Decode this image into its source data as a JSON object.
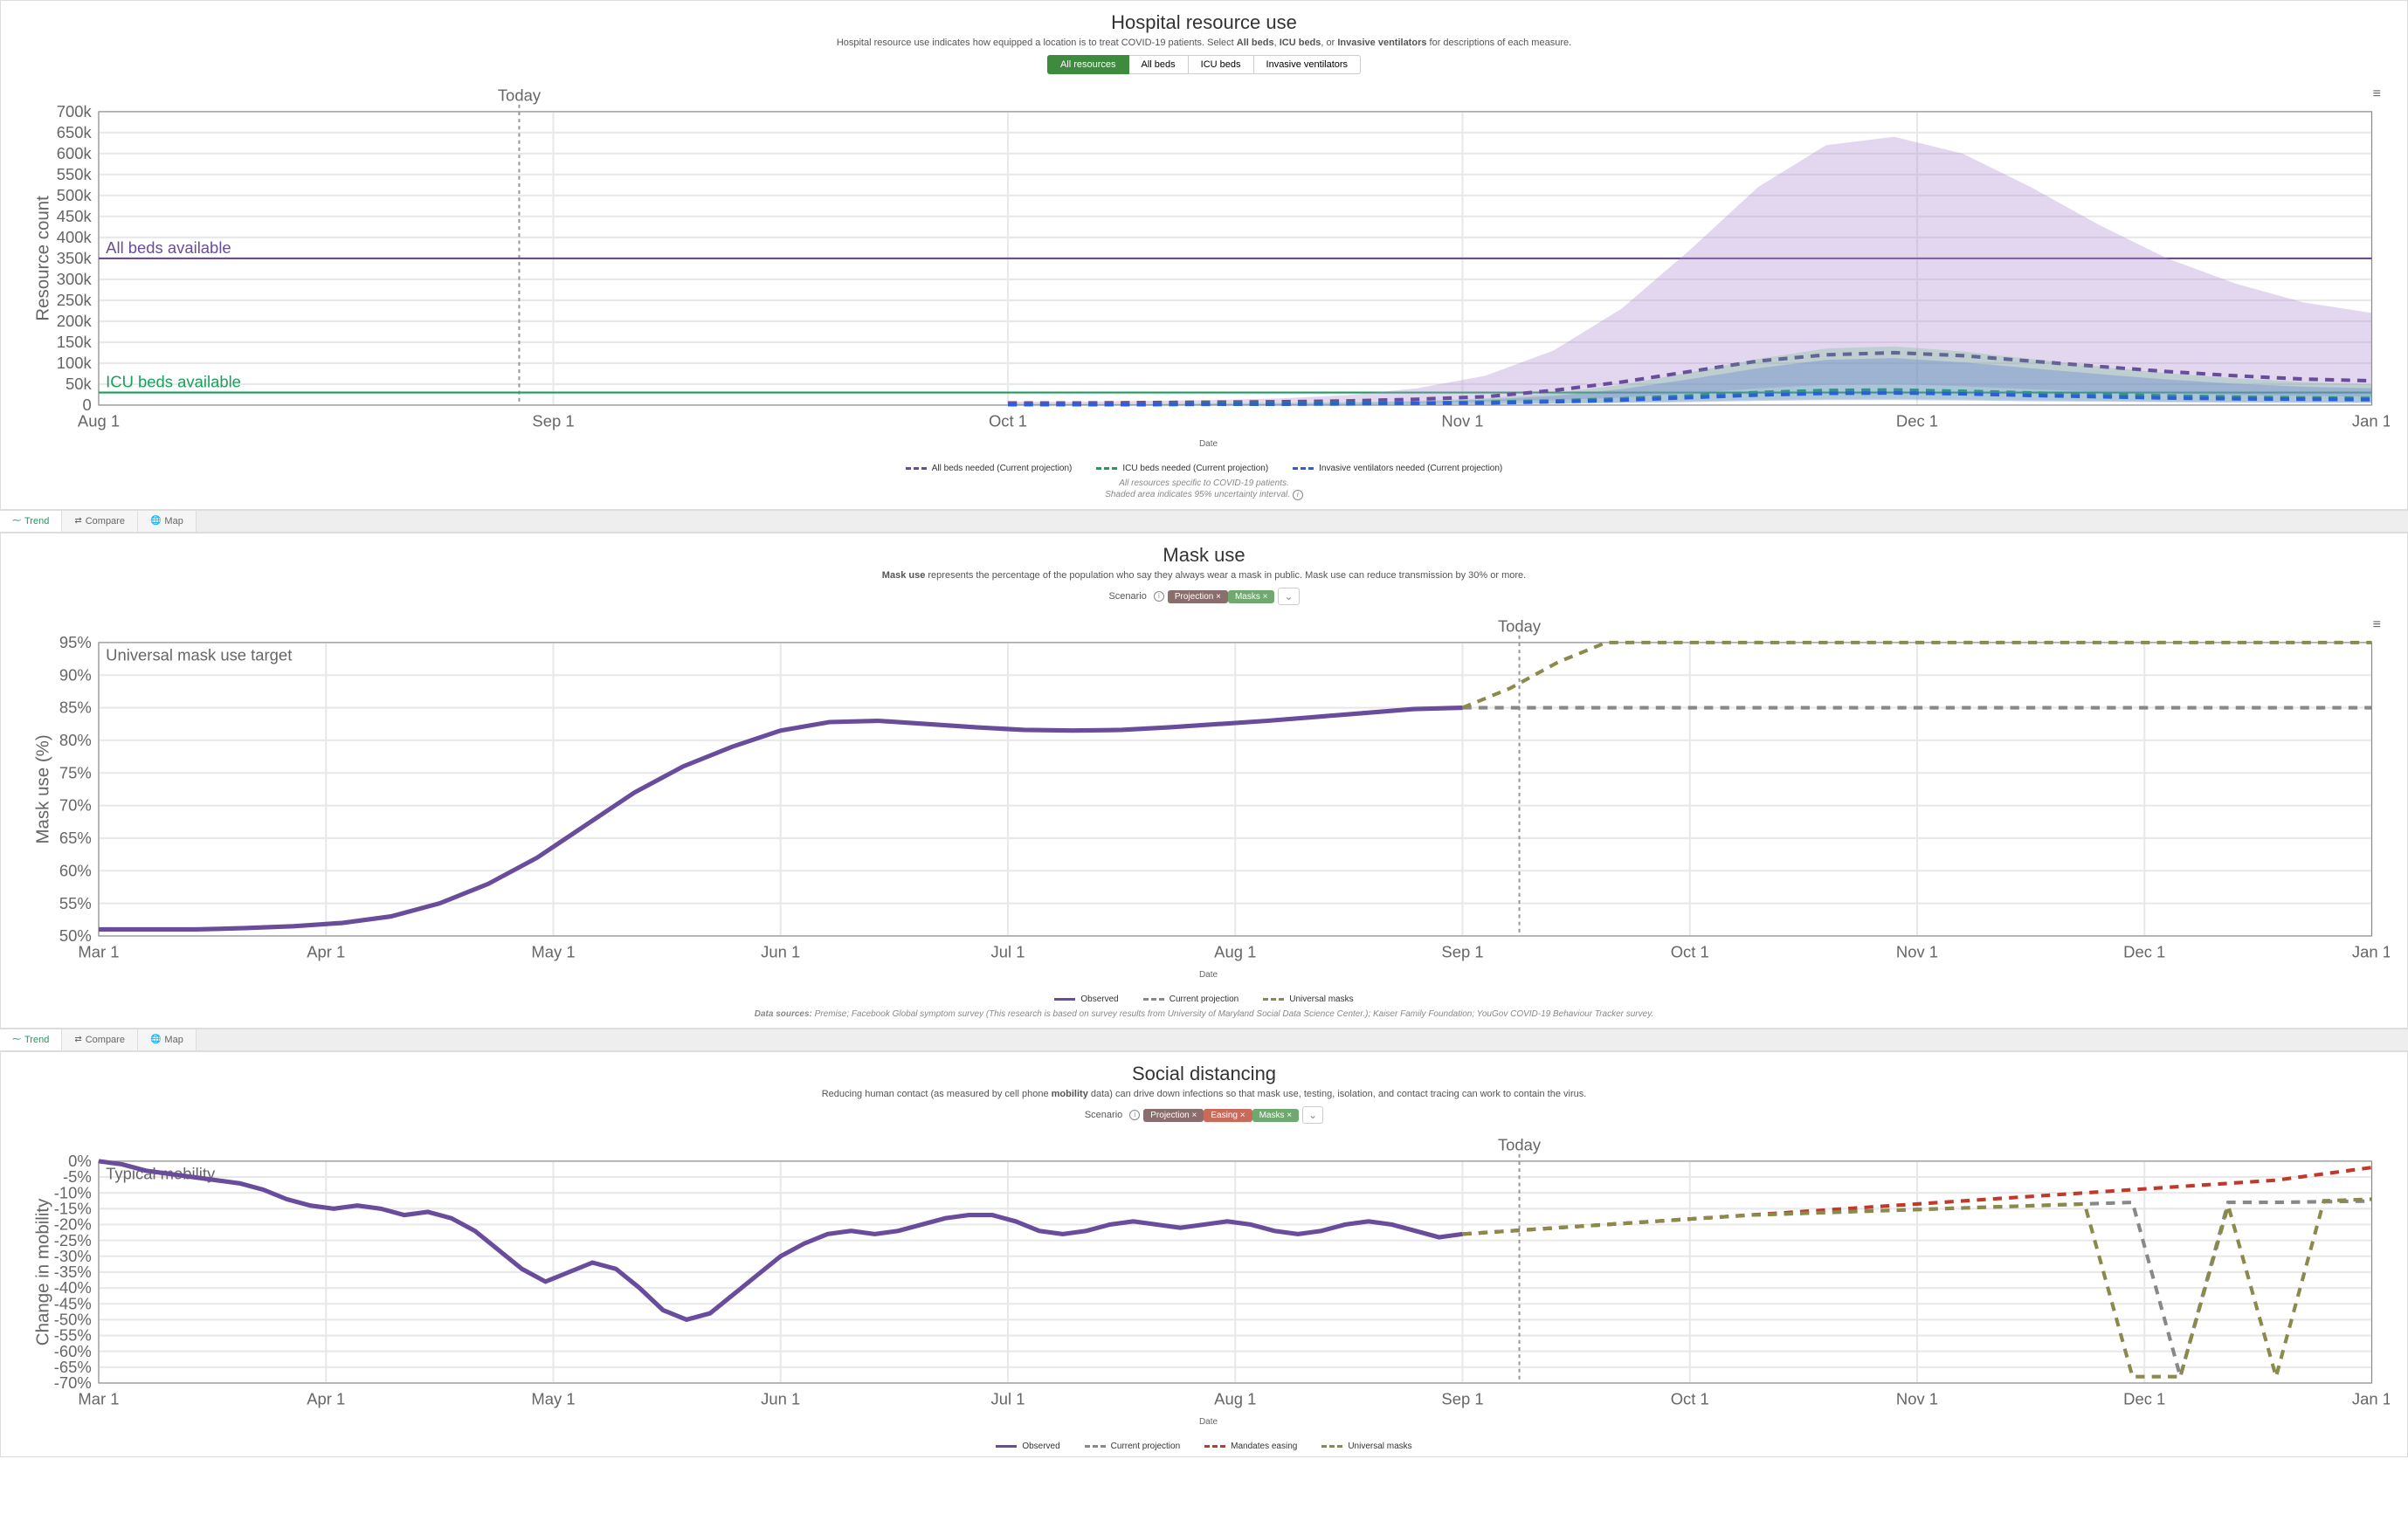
{
  "colors": {
    "purple": "#6a4c9c",
    "green": "#1a9e5c",
    "blue": "#2b5fd9",
    "red": "#c0392b",
    "olive": "#8a8a4a",
    "grid": "#e8e8e8",
    "axis": "#888",
    "today": "#999",
    "text": "#666",
    "area_purple": "rgba(176,140,210,0.35)",
    "area_blue": "rgba(100,130,210,0.35)",
    "area_green": "rgba(80,180,120,0.25)"
  },
  "today_label": "Today",
  "hospital": {
    "title": "Hospital resource use",
    "subtitle_pre": "Hospital resource use indicates how equipped a location is to treat COVID-19 patients. Select ",
    "subtitle_b1": "All beds",
    "subtitle_m1": ", ",
    "subtitle_b2": "ICU beds",
    "subtitle_m2": ", or ",
    "subtitle_b3": "Invasive ventilators",
    "subtitle_post": " for descriptions of each measure.",
    "tabs": [
      "All resources",
      "All beds",
      "ICU beds",
      "Invasive ventilators"
    ],
    "x_label": "Date",
    "y_label": "Resource count",
    "x_ticks": [
      "Aug 1",
      "Sep 1",
      "Oct 1",
      "Nov 1",
      "Dec 1",
      "Jan 1"
    ],
    "x_tick_pos": [
      0,
      0.2,
      0.4,
      0.6,
      0.8,
      1.0
    ],
    "y_max": 700,
    "y_step": 50,
    "today_x": 0.185,
    "ref_lines": [
      {
        "label": "All beds available",
        "y": 350,
        "color": "#6a4c9c"
      },
      {
        "label": "ICU beds available",
        "y": 30,
        "color": "#1a9e5c"
      }
    ],
    "series": {
      "allbeds": {
        "color": "#6a4c9c",
        "area": "rgba(176,140,210,0.35)",
        "mean": [
          5,
          5,
          6,
          7,
          8,
          10,
          14,
          20,
          35,
          55,
          80,
          105,
          120,
          125,
          118,
          105,
          92,
          80,
          70,
          62,
          58
        ],
        "upper": [
          8,
          8,
          10,
          12,
          16,
          24,
          40,
          70,
          130,
          230,
          370,
          520,
          620,
          640,
          600,
          520,
          430,
          350,
          290,
          245,
          220
        ],
        "lower": [
          2,
          2,
          3,
          3,
          4,
          5,
          6,
          8,
          12,
          18,
          28,
          40,
          48,
          50,
          45,
          38,
          32,
          28,
          24,
          22,
          20
        ]
      },
      "icu": {
        "color": "#1a9e5c",
        "area": "rgba(80,180,120,0.25)",
        "mean": [
          2,
          2,
          2,
          3,
          3,
          4,
          5,
          7,
          10,
          15,
          22,
          30,
          35,
          36,
          33,
          29,
          25,
          22,
          19,
          17,
          16
        ],
        "upper": [
          3,
          3,
          3,
          4,
          5,
          7,
          10,
          16,
          28,
          48,
          78,
          110,
          135,
          140,
          128,
          110,
          92,
          76,
          64,
          55,
          50
        ],
        "lower": [
          1,
          1,
          1,
          1,
          1,
          2,
          2,
          3,
          4,
          6,
          9,
          12,
          14,
          15,
          13,
          11,
          10,
          8,
          7,
          7,
          6
        ]
      },
      "vent": {
        "color": "#2b5fd9",
        "area": "rgba(100,130,210,0.35)",
        "mean": [
          1,
          1,
          1,
          2,
          2,
          3,
          4,
          5,
          8,
          12,
          18,
          24,
          28,
          29,
          27,
          23,
          20,
          17,
          15,
          14,
          13
        ],
        "upper": [
          2,
          2,
          2,
          3,
          4,
          5,
          8,
          13,
          22,
          38,
          62,
          88,
          108,
          112,
          102,
          88,
          74,
          61,
          51,
          44,
          40
        ],
        "lower": [
          0.5,
          0.5,
          0.5,
          1,
          1,
          1,
          2,
          2,
          3,
          5,
          7,
          10,
          12,
          12,
          11,
          9,
          8,
          7,
          6,
          5,
          5
        ]
      }
    },
    "series_xstart": 0.4,
    "legend": [
      {
        "label": "All beds needed (Current projection)",
        "color": "#6a4c9c",
        "dash": true
      },
      {
        "label": "ICU beds needed (Current projection)",
        "color": "#1a9e5c",
        "dash": true
      },
      {
        "label": "Invasive ventilators needed (Current projection)",
        "color": "#2b5fd9",
        "dash": true
      }
    ],
    "note1": "All resources specific to COVID-19 patients.",
    "note2": "Shaded area indicates 95% uncertainty interval."
  },
  "viewtabs": [
    {
      "icon": "trend-icon",
      "label": "Trend",
      "active": true
    },
    {
      "icon": "compare-icon",
      "label": "Compare"
    },
    {
      "icon": "map-icon",
      "label": "Map"
    }
  ],
  "mask": {
    "title": "Mask use",
    "sub_b": "Mask use",
    "sub_rest": " represents the percentage of the population who say they always wear a mask in public. Mask use can reduce transmission by 30% or more.",
    "scenario_label": "Scenario",
    "pills": [
      {
        "label": "Projection",
        "color": "#8a6d6d"
      },
      {
        "label": "Masks",
        "color": "#6fa96f"
      }
    ],
    "x_label": "Date",
    "y_label": "Mask use (%)",
    "x_ticks": [
      "Mar 1",
      "Apr 1",
      "May 1",
      "Jun 1",
      "Jul 1",
      "Aug 1",
      "Sep 1",
      "Oct 1",
      "Nov 1",
      "Dec 1",
      "Jan 1"
    ],
    "y_min": 50,
    "y_max": 95,
    "y_step": 5,
    "target_label": "Universal mask use target",
    "target_y": 95,
    "today_x": 0.625,
    "observed_end": 0.6,
    "observed": [
      51,
      51,
      51,
      51.2,
      51.5,
      52,
      53,
      55,
      58,
      62,
      67,
      72,
      76,
      79,
      81.5,
      82.8,
      83,
      82.5,
      82,
      81.6,
      81.5,
      81.6,
      82,
      82.5,
      83,
      83.6,
      84.2,
      84.8,
      85
    ],
    "proj": [
      85,
      85,
      85,
      85,
      85,
      85,
      85,
      85,
      85,
      85,
      85,
      85,
      85,
      85,
      85,
      85,
      85,
      85,
      85,
      85
    ],
    "masks": [
      85,
      88,
      92,
      95,
      95,
      95,
      95,
      95,
      95,
      95,
      95,
      95,
      95,
      95,
      95,
      95,
      95,
      95,
      95,
      95
    ],
    "legend": [
      {
        "label": "Observed",
        "color": "#6a4c9c",
        "dash": false
      },
      {
        "label": "Current projection",
        "color": "#888888",
        "dash": true
      },
      {
        "label": "Universal masks",
        "color": "#8a8a4a",
        "dash": true
      }
    ],
    "sources_b": "Data sources:",
    "sources": " Premise; Facebook Global symptom survey (This research is based on survey results from University of Maryland Social Data Science Center.); Kaiser Family Foundation; YouGov COVID-19 Behaviour Tracker survey."
  },
  "social": {
    "title": "Social distancing",
    "sub_pre": "Reducing human contact (as measured by cell phone ",
    "sub_b": "mobility",
    "sub_post": " data) can drive down infections so that mask use, testing, isolation, and contact tracing can work to contain the virus.",
    "scenario_label": "Scenario",
    "pills": [
      {
        "label": "Projection",
        "color": "#8a6d6d"
      },
      {
        "label": "Easing",
        "color": "#c96a5a"
      },
      {
        "label": "Masks",
        "color": "#6fa96f"
      }
    ],
    "x_label": "Date",
    "y_label": "Change in mobility",
    "x_ticks": [
      "Mar 1",
      "Apr 1",
      "May 1",
      "Jun 1",
      "Jul 1",
      "Aug 1",
      "Sep 1",
      "Oct 1",
      "Nov 1",
      "Dec 1",
      "Jan 1"
    ],
    "y_min": -70,
    "y_max": 0,
    "y_step": 5,
    "typical_label": "Typical mobility",
    "today_x": 0.625,
    "observed_end": 0.6,
    "observed": [
      0,
      -1,
      -3,
      -4,
      -5,
      -6,
      -7,
      -9,
      -12,
      -14,
      -15,
      -14,
      -15,
      -17,
      -16,
      -18,
      -22,
      -28,
      -34,
      -38,
      -35,
      -32,
      -34,
      -40,
      -47,
      -50,
      -48,
      -42,
      -36,
      -30,
      -26,
      -23,
      -22,
      -23,
      -22,
      -20,
      -18,
      -17,
      -17,
      -19,
      -22,
      -23,
      -22,
      -20,
      -19,
      -20,
      -21,
      -20,
      -19,
      -20,
      -22,
      -23,
      -22,
      -20,
      -19,
      -20,
      -22,
      -24,
      -23
    ],
    "proj": [
      -23,
      -22,
      -21,
      -20,
      -19,
      -18,
      -17,
      -16.5,
      -16,
      -15.5,
      -15,
      -14.5,
      -14,
      -13.5,
      -13,
      -68,
      -13,
      -13,
      -12.8,
      -12.6
    ],
    "easing": [
      -23,
      -22,
      -21,
      -20,
      -19,
      -18,
      -17,
      -16,
      -15,
      -14,
      -13,
      -12,
      -11,
      -10,
      -9,
      -8,
      -7,
      -6,
      -4,
      -2
    ],
    "masks": [
      -23,
      -22,
      -21,
      -20,
      -19,
      -18,
      -17,
      -16.5,
      -16,
      -15.5,
      -15,
      -14.5,
      -14,
      -13.5,
      -68,
      -68,
      -14,
      -68,
      -12.5,
      -12
    ],
    "legend": [
      {
        "label": "Observed",
        "color": "#6a4c9c",
        "dash": false
      },
      {
        "label": "Current projection",
        "color": "#888888",
        "dash": true
      },
      {
        "label": "Mandates easing",
        "color": "#c0392b",
        "dash": true
      },
      {
        "label": "Universal masks",
        "color": "#8a8a4a",
        "dash": true
      }
    ]
  }
}
